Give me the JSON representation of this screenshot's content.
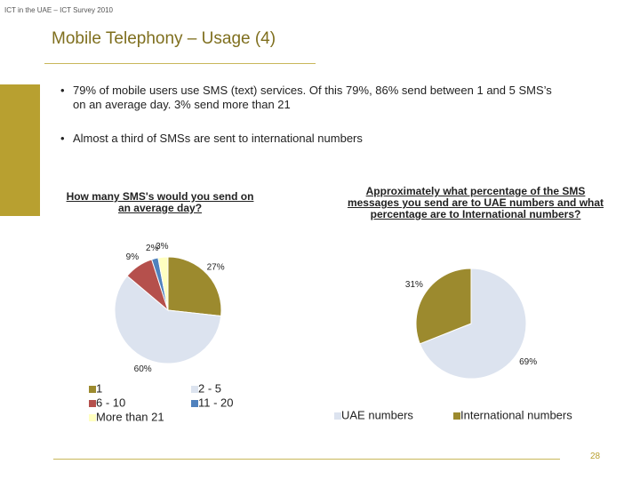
{
  "header": "ICT in the UAE – ICT Survey 2010",
  "title": "Mobile Telephony – Usage (4)",
  "bullets": [
    "79% of mobile users use SMS (text) services.  Of this 79%, 86% send between 1 and 5 SMS’s on an average day.  3% send more than 21",
    "Almost a third of SMSs are sent to international numbers"
  ],
  "page_number": "28",
  "chart_data": [
    {
      "type": "pie",
      "title": "How many SMS's would you send on an average day?",
      "categories": [
        "1",
        "2 - 5",
        "6 - 10",
        "11 - 20",
        "More than 21"
      ],
      "values": [
        27,
        60,
        9,
        2,
        3
      ],
      "value_labels": [
        "27%",
        "60%",
        "9%",
        "2%",
        "3%"
      ],
      "colors": [
        "#9c8a2e",
        "#dce3ef",
        "#b5504c",
        "#4f81bd",
        "#ffffc0"
      ]
    },
    {
      "type": "pie",
      "title": "Approximately what percentage of the SMS messages you send are to UAE numbers and what percentage are to International numbers?",
      "categories": [
        "UAE numbers",
        "International numbers"
      ],
      "values": [
        69,
        31
      ],
      "value_labels": [
        "69%",
        "31%"
      ],
      "colors": [
        "#dce3ef",
        "#9c8a2e"
      ]
    }
  ]
}
